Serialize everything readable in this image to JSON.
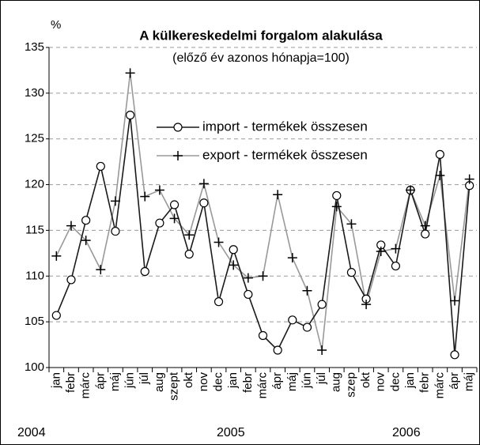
{
  "chart_data": {
    "type": "line",
    "title": "A külkereskedelmi forgalom alakulása",
    "subtitle": "(előző év azonos hónapja=100)",
    "y_label": "%",
    "categories": [
      "jan",
      "febr",
      "márc",
      "ápr",
      "máj",
      "jún",
      "júl",
      "aug",
      "szept",
      "okt",
      "nov",
      "dec",
      "jan",
      "febr",
      "márc",
      "ápr",
      "máj",
      "jún",
      "júl",
      "aug",
      "szep",
      "okt",
      "nov",
      "dec",
      "jan",
      "febr",
      "márc",
      "ápr",
      "máj"
    ],
    "year_labels": [
      "2004",
      "2005",
      "2006"
    ],
    "series": [
      {
        "name": "import - termékek összesen",
        "color": "#1a1a1a",
        "marker": "circle",
        "values": [
          105.7,
          109.6,
          116.1,
          122.0,
          114.9,
          127.6,
          110.5,
          115.8,
          117.8,
          112.4,
          118.0,
          107.2,
          112.9,
          108.0,
          103.5,
          101.9,
          105.2,
          104.4,
          106.9,
          118.8,
          110.4,
          107.5,
          113.4,
          111.1,
          119.4,
          114.6,
          123.3,
          101.4,
          119.9
        ]
      },
      {
        "name": "export - termékek összesen",
        "color": "#999999",
        "marker": "plus",
        "values": [
          112.2,
          115.5,
          113.9,
          110.7,
          118.2,
          132.2,
          118.7,
          119.4,
          116.3,
          114.5,
          120.1,
          113.7,
          111.2,
          109.8,
          110.0,
          118.9,
          112.0,
          108.4,
          101.9,
          117.6,
          115.7,
          106.9,
          112.7,
          113.0,
          119.4,
          115.5,
          121.0,
          107.3,
          120.6
        ]
      }
    ],
    "ylim": [
      100,
      135
    ],
    "yticks": [
      100,
      105,
      110,
      115,
      120,
      125,
      130,
      135
    ],
    "grid": true,
    "legend": "upper center"
  }
}
